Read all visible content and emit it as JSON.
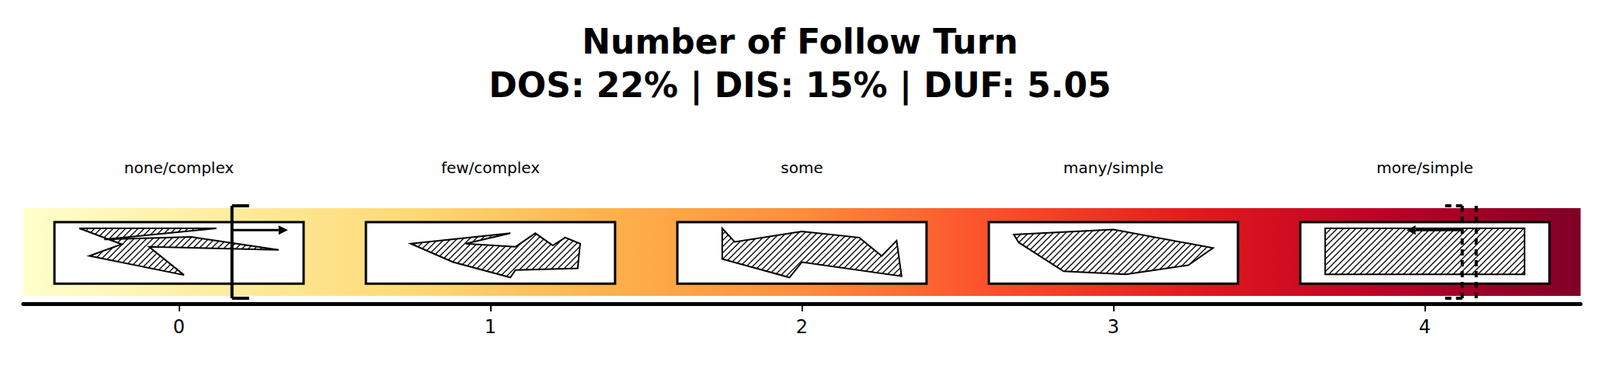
{
  "chart_data": {
    "type": "ordinal_scale",
    "title": "Number of Follow Turn",
    "subtitle": "DOS: 22% | DIS: 15% | DUF: 5.05",
    "categories": [
      "none/complex",
      "few/complex",
      "some",
      "many/simple",
      "more/simple"
    ],
    "x": [
      0,
      1,
      2,
      3,
      4
    ],
    "xlim": [
      -0.5,
      4.5
    ],
    "xticks": [
      0,
      1,
      2,
      3,
      4
    ],
    "markers": [
      {
        "value": 0.17,
        "line_style": "solid"
      },
      {
        "value": 4.12,
        "line_style": "dashed"
      }
    ],
    "tick_labels": "x",
    "grid": false
  }
}
